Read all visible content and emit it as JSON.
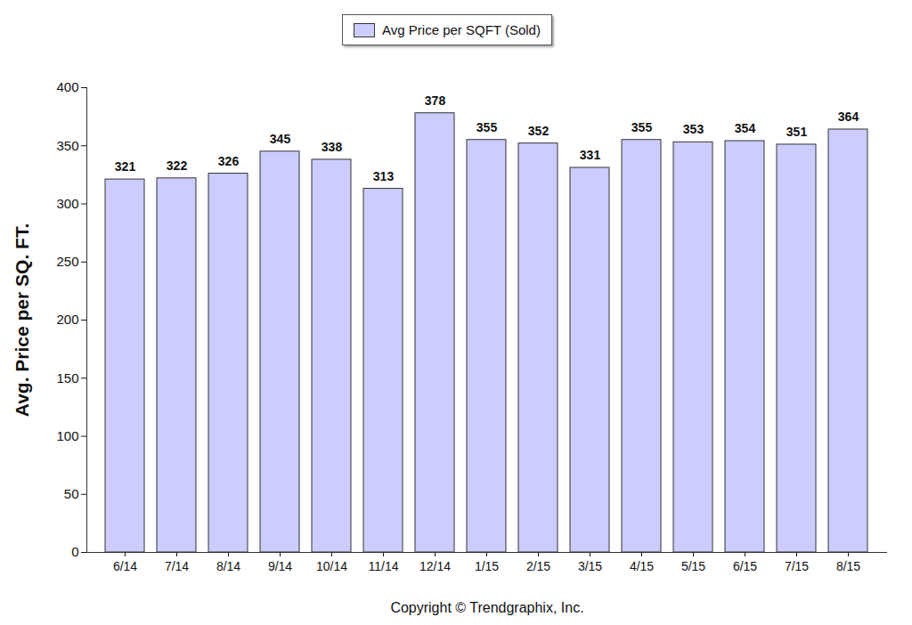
{
  "chart_data": {
    "type": "bar",
    "categories": [
      "6/14",
      "7/14",
      "8/14",
      "9/14",
      "10/14",
      "11/14",
      "12/14",
      "1/15",
      "2/15",
      "3/15",
      "4/15",
      "5/15",
      "6/15",
      "7/15",
      "8/15"
    ],
    "series": [
      {
        "name": "Avg Price per SQFT (Sold)",
        "color": "#ccccff",
        "values": [
          321,
          322,
          326,
          345,
          338,
          313,
          378,
          355,
          352,
          331,
          355,
          353,
          354,
          351,
          364
        ]
      }
    ],
    "y_label": "Avg. Price per SQ. FT.",
    "caption": "Copyright © Trendgraphix, Inc.",
    "ylim": [
      0,
      400
    ],
    "yticks": [
      0,
      50,
      100,
      150,
      200,
      250,
      300,
      350,
      400
    ],
    "legend": "top",
    "data_labels": true,
    "grid": false
  }
}
